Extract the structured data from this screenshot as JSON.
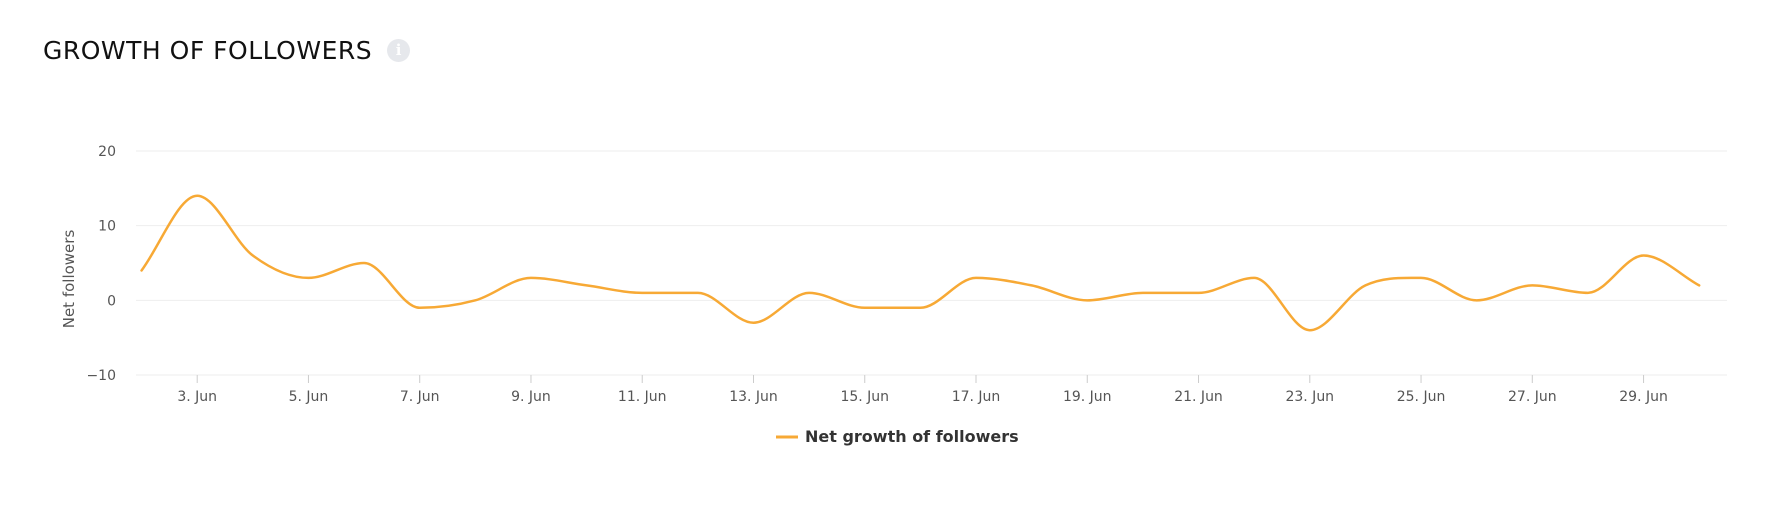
{
  "header": {
    "title": "GROWTH OF FOLLOWERS",
    "info_icon": "info-icon"
  },
  "colors": {
    "series": "#f7a935",
    "grid": "#eeeeee",
    "tick": "#555555"
  },
  "chart_data": {
    "type": "line",
    "title": "GROWTH OF FOLLOWERS",
    "xlabel": "",
    "ylabel": "Net followers",
    "ylim": [
      -10,
      20
    ],
    "y_ticks": [
      "20",
      "10",
      "0",
      "−10"
    ],
    "y_tick_values": [
      20,
      10,
      0,
      -10
    ],
    "x_range": [
      1.9,
      30.5
    ],
    "x_ticks": [
      {
        "day": 3,
        "label": "3. Jun"
      },
      {
        "day": 5,
        "label": "5. Jun"
      },
      {
        "day": 7,
        "label": "7. Jun"
      },
      {
        "day": 9,
        "label": "9. Jun"
      },
      {
        "day": 11,
        "label": "11. Jun"
      },
      {
        "day": 13,
        "label": "13. Jun"
      },
      {
        "day": 15,
        "label": "15. Jun"
      },
      {
        "day": 17,
        "label": "17. Jun"
      },
      {
        "day": 19,
        "label": "19. Jun"
      },
      {
        "day": 21,
        "label": "21. Jun"
      },
      {
        "day": 23,
        "label": "23. Jun"
      },
      {
        "day": 25,
        "label": "25. Jun"
      },
      {
        "day": 27,
        "label": "27. Jun"
      },
      {
        "day": 29,
        "label": "29. Jun"
      }
    ],
    "grid": true,
    "legend_position": "bottom-center",
    "series": [
      {
        "name": "Net growth of followers",
        "color": "#f7a935",
        "x": [
          2,
          3,
          4,
          5,
          6,
          7,
          8,
          9,
          10,
          11,
          12,
          13,
          14,
          15,
          16,
          17,
          18,
          19,
          20,
          21,
          22,
          23,
          24,
          25,
          26,
          27,
          28,
          29,
          30
        ],
        "values": [
          4,
          14,
          6,
          3,
          5,
          -1,
          0,
          3,
          2,
          1,
          1,
          -3,
          1,
          -1,
          -1,
          3,
          2,
          0,
          1,
          1,
          3,
          -4,
          2,
          3,
          0,
          2,
          1,
          6,
          2
        ]
      }
    ]
  }
}
